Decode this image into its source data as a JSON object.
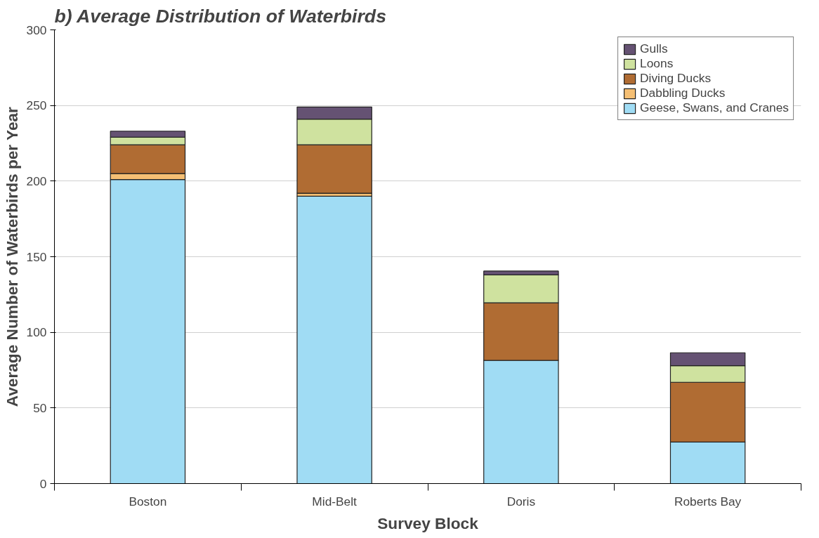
{
  "chart_data": {
    "type": "bar",
    "stacked": true,
    "title": "b) Average Distribution of Waterbirds",
    "xlabel": "Survey Block",
    "ylabel": "Average Number of Waterbirds per Year",
    "categories": [
      "Boston",
      "Mid-Belt",
      "Doris",
      "Roberts Bay"
    ],
    "series": [
      {
        "name": "Geese, Swans, and Cranes",
        "color": "#a0dcf4",
        "values": [
          201,
          190,
          81.5,
          27.5
        ]
      },
      {
        "name": "Dabbling Ducks",
        "color": "#f5bf74",
        "values": [
          4,
          2,
          0,
          0
        ]
      },
      {
        "name": "Diving Ducks",
        "color": "#b06c33",
        "values": [
          19,
          32,
          38,
          39.5
        ]
      },
      {
        "name": "Loons",
        "color": "#cfe29f",
        "values": [
          5,
          17,
          18.5,
          11
        ]
      },
      {
        "name": "Gulls",
        "color": "#655273",
        "values": [
          4,
          8,
          2.5,
          8.5
        ]
      }
    ],
    "ylim": [
      0,
      300
    ],
    "yticks": [
      0,
      50,
      100,
      150,
      200,
      250,
      300
    ],
    "grid": "y",
    "legend": "top right"
  }
}
